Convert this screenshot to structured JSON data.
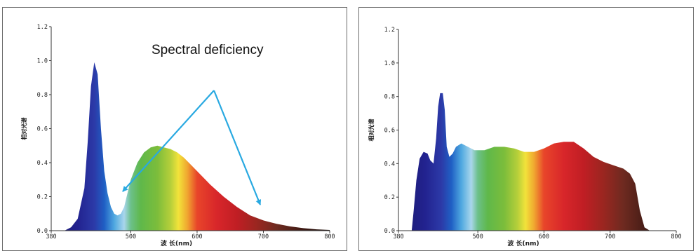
{
  "chart_data": [
    {
      "type": "area",
      "title": "",
      "xlabel": "波 长(nm)",
      "ylabel": "相对光谱",
      "xlim": [
        380,
        800
      ],
      "ylim": [
        0,
        1.2
      ],
      "x_ticks": [
        "380",
        "500",
        "600",
        "700",
        "800"
      ],
      "y_ticks": [
        "0.0",
        "0.2",
        "0.4",
        "0.6",
        "0.8",
        "1.0",
        "1.2"
      ],
      "grid": false,
      "annotation": {
        "text": "Spectral deficiency",
        "arrow_color": "#29a9e1"
      },
      "series": [
        {
          "x": [
            400,
            410,
            420,
            430,
            435,
            440,
            445,
            450,
            455,
            460,
            465,
            470,
            475,
            480,
            485,
            490,
            495,
            500,
            510,
            520,
            530,
            540,
            550,
            560,
            570,
            580,
            590,
            600,
            620,
            640,
            660,
            680,
            700,
            720,
            740,
            760,
            780,
            800
          ],
          "values": [
            0.0,
            0.02,
            0.07,
            0.25,
            0.52,
            0.85,
            0.99,
            0.92,
            0.6,
            0.35,
            0.22,
            0.14,
            0.1,
            0.09,
            0.1,
            0.14,
            0.22,
            0.3,
            0.4,
            0.46,
            0.49,
            0.5,
            0.49,
            0.48,
            0.46,
            0.43,
            0.39,
            0.35,
            0.27,
            0.2,
            0.14,
            0.09,
            0.06,
            0.04,
            0.025,
            0.015,
            0.008,
            0.004
          ]
        }
      ]
    },
    {
      "type": "area",
      "title": "",
      "xlabel": "波 长(nm)",
      "ylabel": "相对光谱",
      "xlim": [
        380,
        800
      ],
      "ylim": [
        0,
        1.2
      ],
      "x_ticks": [
        "380",
        "500",
        "600",
        "700",
        "800"
      ],
      "y_ticks": [
        "0.0",
        "0.2",
        "0.4",
        "0.6",
        "0.8",
        "1.0",
        "1.2"
      ],
      "grid": false,
      "series": [
        {
          "x": [
            400,
            403,
            407,
            412,
            418,
            424,
            428,
            433,
            437,
            440,
            443,
            447,
            450,
            453,
            457,
            462,
            467,
            475,
            485,
            495,
            510,
            525,
            540,
            555,
            570,
            585,
            600,
            615,
            630,
            645,
            660,
            675,
            690,
            705,
            720,
            730,
            738,
            745,
            752,
            760,
            800
          ],
          "values": [
            0.0,
            0.12,
            0.3,
            0.43,
            0.47,
            0.46,
            0.42,
            0.4,
            0.55,
            0.74,
            0.82,
            0.82,
            0.72,
            0.5,
            0.44,
            0.46,
            0.5,
            0.52,
            0.5,
            0.48,
            0.48,
            0.5,
            0.5,
            0.49,
            0.47,
            0.47,
            0.49,
            0.52,
            0.53,
            0.53,
            0.49,
            0.44,
            0.41,
            0.39,
            0.37,
            0.34,
            0.28,
            0.12,
            0.02,
            0.0,
            0.0
          ]
        }
      ]
    }
  ]
}
